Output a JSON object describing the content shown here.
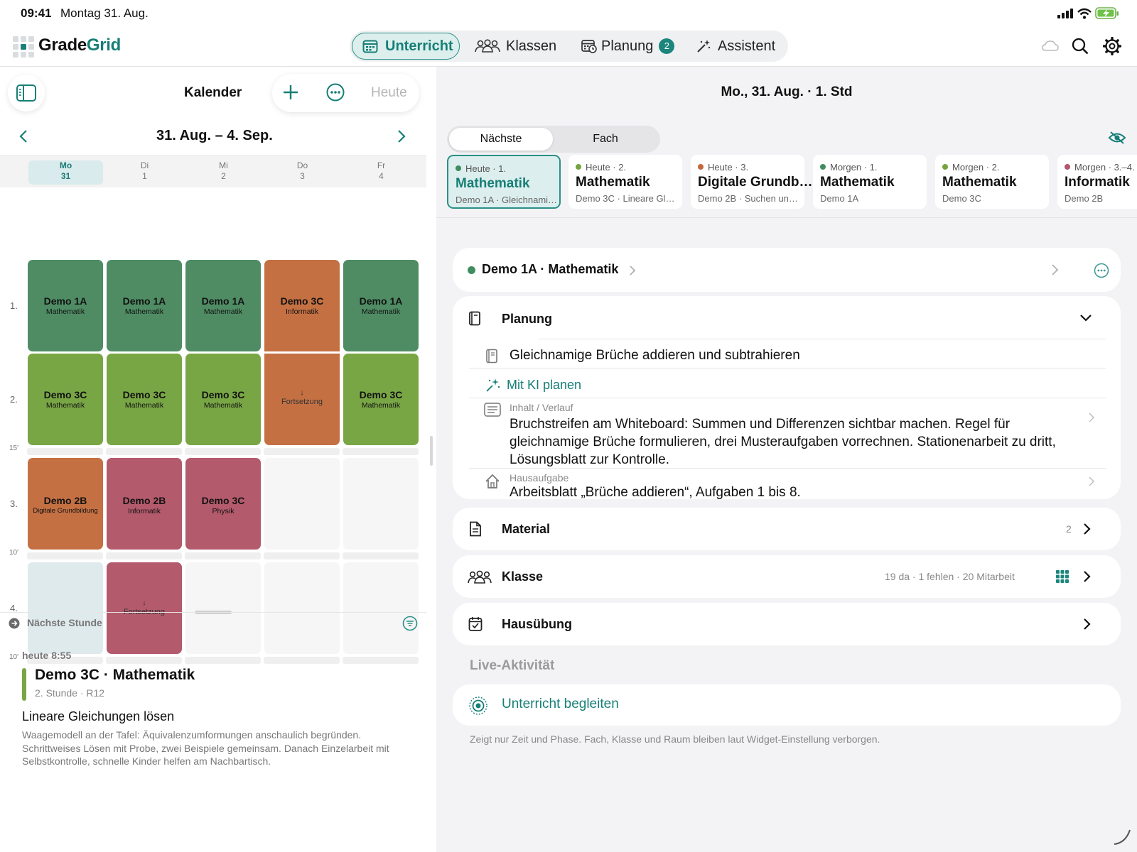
{
  "status": {
    "time": "09:41",
    "date": "Montag 31. Aug."
  },
  "app": {
    "logo_part1": "Grade",
    "logo_part2": "Grid"
  },
  "nav": {
    "tabs": [
      {
        "label": "Unterricht",
        "icon": "calendar-icon"
      },
      {
        "label": "Klassen",
        "icon": "people-icon"
      },
      {
        "label": "Planung",
        "icon": "calendar-clock-icon",
        "badge": "2"
      },
      {
        "label": "Assistent",
        "icon": "magic-wand-icon"
      }
    ]
  },
  "calendar": {
    "title": "Kalender",
    "today_label": "Heute",
    "range": "31. Aug. – 4. Sep.",
    "days": [
      {
        "name": "Mo",
        "num": "31"
      },
      {
        "name": "Di",
        "num": "1"
      },
      {
        "name": "Mi",
        "num": "2"
      },
      {
        "name": "Do",
        "num": "3"
      },
      {
        "name": "Fr",
        "num": "4"
      }
    ],
    "periods": [
      "1.",
      "2.",
      "3.",
      "4."
    ],
    "breaks": [
      "15′",
      "10′",
      "10′"
    ],
    "cells": [
      {
        "cls": "Demo 1A",
        "sub": "Mathematik"
      },
      {
        "cls": "Demo 1A",
        "sub": "Mathematik"
      },
      {
        "cls": "Demo 1A",
        "sub": "Mathematik"
      },
      {
        "cls": "Demo 3C",
        "sub": "Informatik"
      },
      {
        "cls": "Demo 1A",
        "sub": "Mathematik"
      },
      {
        "cls": "Demo 3C",
        "sub": "Mathematik"
      },
      {
        "cls": "Demo 3C",
        "sub": "Mathematik"
      },
      {
        "cls": "Demo 3C",
        "sub": "Mathematik"
      },
      {
        "cont": "↓",
        "sub": "Fortsetzung"
      },
      {
        "cls": "Demo 3C",
        "sub": "Mathematik"
      },
      {
        "cls": "Demo 2B",
        "sub": "Digitale Grundbildung"
      },
      {
        "cls": "Demo 2B",
        "sub": "Informatik"
      },
      {
        "cls": "Demo 3C",
        "sub": "Physik"
      },
      {
        "cont": "↓",
        "sub": "Fortsetzung"
      }
    ]
  },
  "next_lesson": {
    "section_label": "Nächste Stunde",
    "when": "heute 8:55",
    "title": "Demo 3C · Mathematik",
    "meta": "2. Stunde · R12",
    "topic": "Lineare Gleichungen lösen",
    "desc": "Waagemodell an der Tafel: Äquivalenzumformungen anschaulich begründen. Schrittweises Lösen mit Probe, zwei Beispiele gemeinsam. Danach Einzelarbeit mit Selbstkontrolle, schnelle Kinder helfen am Nachbartisch."
  },
  "detail": {
    "header": "Mo., 31. Aug. · 1. Std",
    "toggle": [
      "Nächste",
      "Fach"
    ],
    "chips": [
      {
        "when": "Heute · 1.",
        "title": "Mathematik",
        "sub": "Demo 1A · Gleichnami…",
        "color": "#3f8d5e"
      },
      {
        "when": "Heute · 2.",
        "title": "Mathematik",
        "sub": "Demo 3C · Lineare Gl…",
        "color": "#76a33f"
      },
      {
        "when": "Heute · 3.",
        "title": "Digitale Grundb…",
        "sub": "Demo 2B · Suchen un…",
        "color": "#c4683c"
      },
      {
        "when": "Morgen · 1.",
        "title": "Mathematik",
        "sub": "Demo 1A",
        "color": "#3f8d5e"
      },
      {
        "when": "Morgen · 2.",
        "title": "Mathematik",
        "sub": "Demo 3C",
        "color": "#76a33f"
      },
      {
        "when": "Morgen · 3.–4.",
        "title": "Informatik",
        "sub": "Demo 2B",
        "color": "#b3566c"
      }
    ],
    "lesson_title": "Demo 1A · Mathematik",
    "planning": {
      "title": "Planung",
      "topic": "Gleichnamige Brüche addieren und subtrahieren",
      "ai_label": "Mit KI planen",
      "content_label": "Inhalt / Verlauf",
      "content_text": "Bruchstreifen am Whiteboard: Summen und Differenzen sichtbar machen. Regel für gleichnamige Brüche formulieren, drei Musteraufgaben vorrechnen. Stationenarbeit zu dritt, Lösungsblatt zur Kontrolle.",
      "homework_label": "Hausaufgabe",
      "homework_text": "Arbeitsblatt „Brüche addieren“, Aufgaben 1 bis 8."
    },
    "material": {
      "title": "Material",
      "count": "2"
    },
    "klasse": {
      "title": "Klasse",
      "summary": "19 da · 1 fehlen · 20 Mitarbeit"
    },
    "hausuebung": {
      "title": "Hausübung"
    },
    "live": {
      "section": "Live-Aktivität",
      "action": "Unterricht begleiten",
      "note": "Zeigt nur Zeit und Phase. Fach, Klasse und Raum bleiben laut Widget-Einstellung verborgen."
    }
  }
}
